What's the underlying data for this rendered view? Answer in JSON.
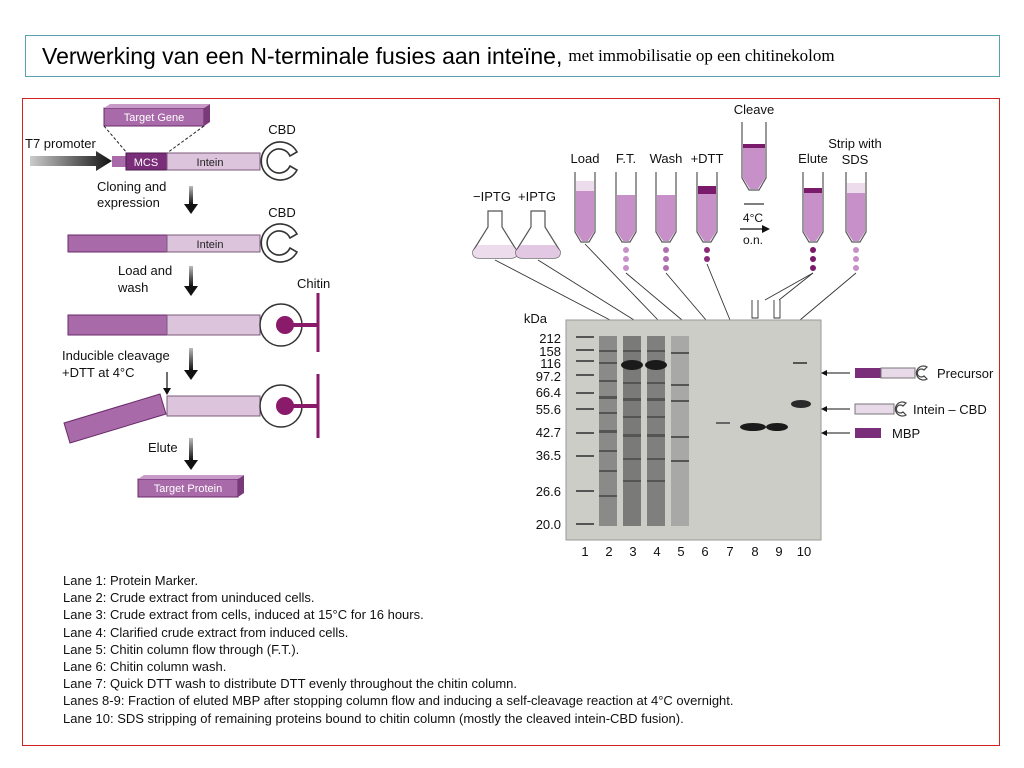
{
  "title": {
    "main": "Verwerking van een N-terminale fusies aan inteïne,",
    "sub": "met immobilisatie op een chitinekolom"
  },
  "scheme": {
    "target_gene": "Target Gene",
    "t7_promoter": "T7 promoter",
    "mcs": "MCS",
    "intein": "Intein",
    "cbd": "CBD",
    "cloning_line1": "Cloning and",
    "cloning_line2": "expression",
    "load_line1": "Load and",
    "load_line2": "wash",
    "chitin": "Chitin",
    "cleavage_line1": "Inducible cleavage",
    "cleavage_line2": "+DTT at 4°C",
    "elute": "Elute",
    "target_protein": "Target Protein"
  },
  "column_steps": {
    "minus_iptg": "−IPTG",
    "plus_iptg": "+IPTG",
    "load": "Load",
    "ft": "F.T.",
    "wash": "Wash",
    "dtt": "+DTT",
    "cleave": "Cleave",
    "temp": "4°C",
    "on": "o.n.",
    "elute": "Elute",
    "strip_line1": "Strip with",
    "strip_line2": "SDS"
  },
  "gel": {
    "kda_label": "kDa",
    "markers": [
      "212",
      "158",
      "116",
      "97.2",
      "66.4",
      "55.6",
      "42.7",
      "36.5",
      "26.6",
      "20.0"
    ],
    "lanes": [
      "1",
      "2",
      "3",
      "4",
      "5",
      "6",
      "7",
      "8",
      "9",
      "10"
    ],
    "bands": {
      "precursor": "Precursor",
      "intein_cbd": "Intein – CBD",
      "mbp": "MBP"
    }
  },
  "legend": [
    "Lane 1: Protein Marker.",
    "Lane 2: Crude extract from uninduced cells.",
    "Lane 3: Crude extract from cells, induced at 15°C for 16 hours.",
    "Lane 4: Clarified crude extract from induced cells.",
    "Lane 5: Chitin column flow through (F.T.).",
    "Lane 6: Chitin column wash.",
    "Lane 7: Quick DTT wash to distribute DTT evenly throughout the chitin column.",
    "Lanes 8-9: Fraction of eluted MBP after stopping column flow and inducing a self-cleavage reaction at 4°C overnight.",
    "Lane 10: SDS stripping of remaining proteins bound to chitin column (mostly the cleaved intein-CBD fusion)."
  ],
  "colors": {
    "frame": "#d02020",
    "title_border": "#5aa0b0",
    "target_dark": "#7a2e7a",
    "target_mid": "#a86aa8",
    "intein_light": "#dcc4dc",
    "chitin": "#8a1a6a",
    "gel_bg": "#cdcdc8"
  }
}
